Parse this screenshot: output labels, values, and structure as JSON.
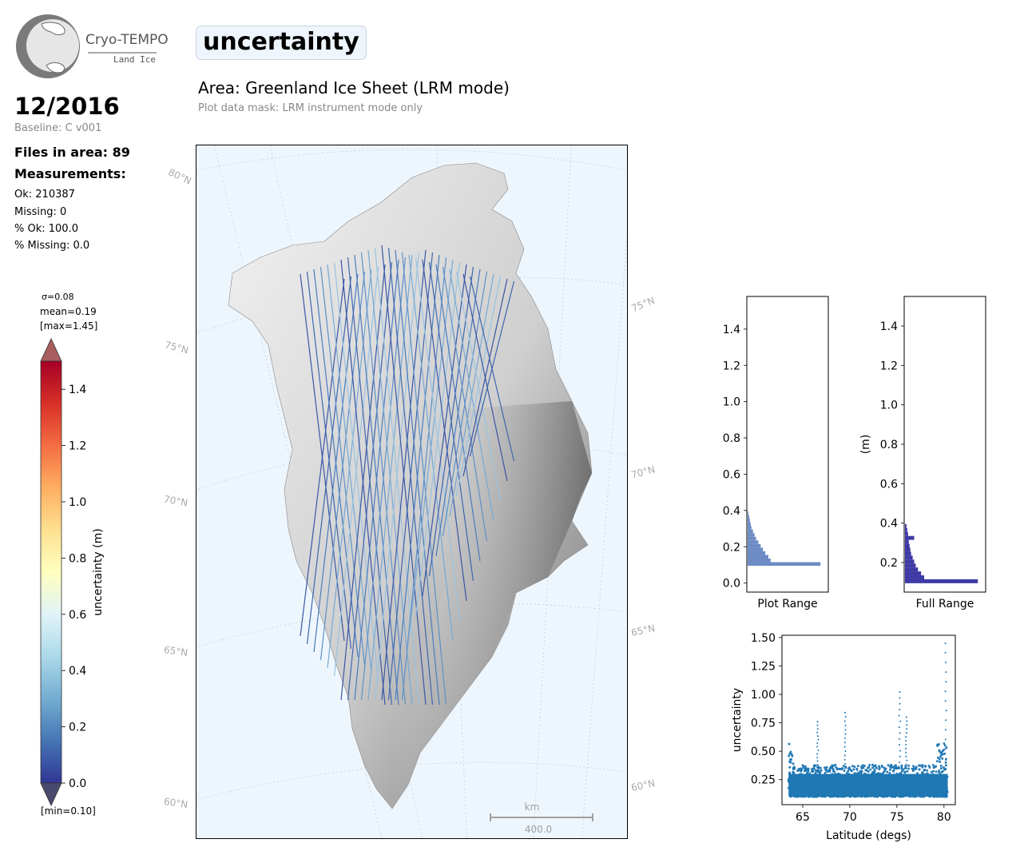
{
  "logo": {
    "name": "Cryo-TEMPO",
    "sub": "Land Ice"
  },
  "header": {
    "date": "12/2016",
    "baseline": "Baseline: C v001",
    "title": "uncertainty",
    "area": "Area: Greenland Ice Sheet (LRM mode)",
    "mask": "Plot data mask: LRM instrument mode only"
  },
  "stats": {
    "files": "Files in area: 89",
    "measurements": "Measurements:",
    "ok": "Ok: 210387",
    "missing": "Missing: 0",
    "pct_ok": "% Ok: 100.0",
    "pct_missing": "% Missing: 0.0"
  },
  "colorbar": {
    "sigma": "σ=0.08",
    "mean": "mean=0.19",
    "max": "[max=1.45]",
    "min": "[min=0.10]",
    "label": "uncertainty (m)",
    "range": [
      0.0,
      1.5
    ],
    "ticks": [
      "0.0",
      "0.2",
      "0.4",
      "0.6",
      "0.8",
      "1.0",
      "1.2",
      "1.4"
    ],
    "colormap": [
      "#313695",
      "#4575b4",
      "#74add1",
      "#abd9e9",
      "#e0f3f8",
      "#ffffbf",
      "#fee090",
      "#fdae61",
      "#f46d43",
      "#d73027",
      "#a50026"
    ]
  },
  "map": {
    "lat_labels_left": [
      "80°N",
      "75°N",
      "70°N",
      "65°N",
      "60°N"
    ],
    "lat_labels_right": [
      "75°N",
      "70°N",
      "65°N",
      "60°N"
    ],
    "scale_unit": "km",
    "scale_value": "400.0",
    "ocean_color": "#eef6fd"
  },
  "chart_data": [
    {
      "type": "bar",
      "orientation": "horizontal",
      "xlabel": "Plot Range",
      "ylabel": "",
      "ylim": [
        -0.05,
        1.58
      ],
      "yticks": [
        "0.0",
        "0.2",
        "0.4",
        "0.6",
        "0.8",
        "1.0",
        "1.2",
        "1.4"
      ],
      "bins": [
        {
          "y": 0.105,
          "v": 0.95
        },
        {
          "y": 0.125,
          "v": 0.3
        },
        {
          "y": 0.145,
          "v": 0.27
        },
        {
          "y": 0.165,
          "v": 0.23
        },
        {
          "y": 0.185,
          "v": 0.2
        },
        {
          "y": 0.205,
          "v": 0.17
        },
        {
          "y": 0.225,
          "v": 0.14
        },
        {
          "y": 0.245,
          "v": 0.11
        },
        {
          "y": 0.265,
          "v": 0.09
        },
        {
          "y": 0.285,
          "v": 0.07
        },
        {
          "y": 0.305,
          "v": 0.05
        },
        {
          "y": 0.325,
          "v": 0.04
        },
        {
          "y": 0.345,
          "v": 0.03
        },
        {
          "y": 0.365,
          "v": 0.02
        },
        {
          "y": 0.385,
          "v": 0.01
        }
      ]
    },
    {
      "type": "bar",
      "orientation": "horizontal",
      "xlabel": "Full Range",
      "ylabel": "(m)",
      "ylim": [
        0.05,
        1.55
      ],
      "yticks": [
        "0.2",
        "0.4",
        "0.6",
        "0.8",
        "1.0",
        "1.2",
        "1.4"
      ],
      "bins": [
        {
          "y": 0.105,
          "v": 0.95
        },
        {
          "y": 0.125,
          "v": 0.25
        },
        {
          "y": 0.145,
          "v": 0.21
        },
        {
          "y": 0.165,
          "v": 0.17
        },
        {
          "y": 0.185,
          "v": 0.14
        },
        {
          "y": 0.205,
          "v": 0.12
        },
        {
          "y": 0.225,
          "v": 0.1
        },
        {
          "y": 0.245,
          "v": 0.08
        },
        {
          "y": 0.265,
          "v": 0.07
        },
        {
          "y": 0.285,
          "v": 0.06
        },
        {
          "y": 0.305,
          "v": 0.05
        },
        {
          "y": 0.325,
          "v": 0.12
        },
        {
          "y": 0.345,
          "v": 0.04
        },
        {
          "y": 0.365,
          "v": 0.03
        },
        {
          "y": 0.385,
          "v": 0.02
        }
      ]
    },
    {
      "type": "scatter",
      "xlabel": "Latitude (degs)",
      "ylabel": "uncertainty",
      "xlim": [
        62.8,
        81.2
      ],
      "ylim": [
        0.03,
        1.52
      ],
      "xticks": [
        "65",
        "70",
        "75",
        "80"
      ],
      "yticks": [
        "0.25",
        "0.50",
        "0.75",
        "1.00",
        "1.25",
        "1.50"
      ],
      "color": "#1f77b4",
      "band": {
        "x_min": 63.5,
        "x_max": 80.4,
        "y_min": 0.1,
        "y_max_typical": 0.38,
        "y_max_edge": 0.58
      },
      "spikes": [
        {
          "x": 66.6,
          "y": 0.76
        },
        {
          "x": 69.5,
          "y": 0.84
        },
        {
          "x": 75.3,
          "y": 1.02
        },
        {
          "x": 76.0,
          "y": 0.8
        },
        {
          "x": 80.2,
          "y": 1.45
        }
      ]
    }
  ]
}
